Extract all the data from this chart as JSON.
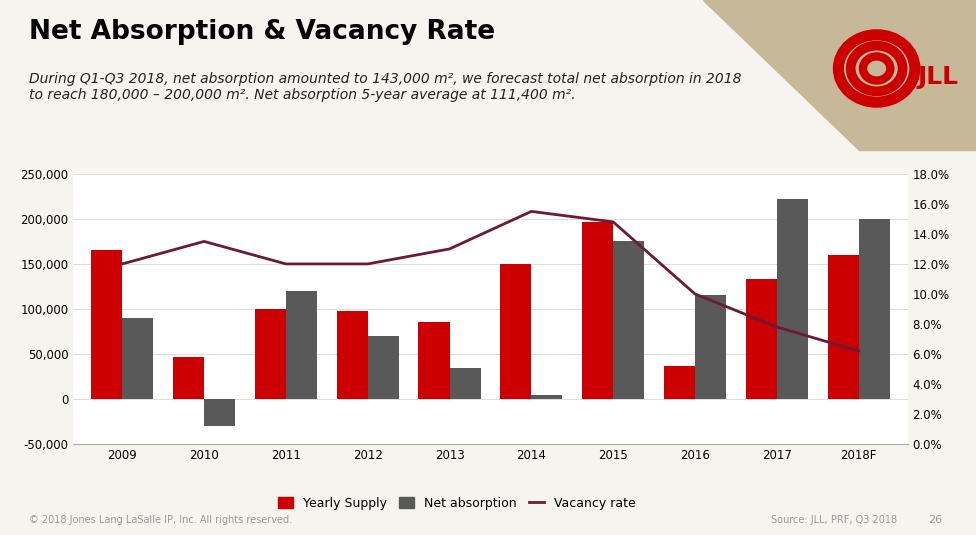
{
  "title": "Net Absorption & Vacancy Rate",
  "subtitle": "During Q1-Q3 2018, net absorption amounted to 143,000 m², we forecast total net absorption in 2018\nto reach 180,000 – 200,000 m². Net absorption 5-year average at 111,400 m².",
  "categories": [
    "2009",
    "2010",
    "2011",
    "2012",
    "2013",
    "2014",
    "2015",
    "2016",
    "2017",
    "2018F"
  ],
  "yearly_supply": [
    165000,
    47000,
    100000,
    98000,
    85000,
    150000,
    197000,
    37000,
    133000,
    160000
  ],
  "net_absorption": [
    90000,
    -30000,
    120000,
    70000,
    35000,
    5000,
    175000,
    115000,
    222000,
    200000
  ],
  "vacancy_rate": [
    0.12,
    0.135,
    0.12,
    0.12,
    0.13,
    0.155,
    0.148,
    0.1,
    0.078,
    0.062
  ],
  "bar_width": 0.38,
  "yearly_supply_color": "#cc0000",
  "net_absorption_color": "#595959",
  "vacancy_rate_color": "#6b1a3a",
  "slide_bg_color": "#f5f4ef",
  "header_bg_color": "#ffffff",
  "plot_bg_color": "#ffffff",
  "ylim_left": [
    -50000,
    250000
  ],
  "ylim_right": [
    0.0,
    0.18
  ],
  "yticks_left": [
    -50000,
    0,
    50000,
    100000,
    150000,
    200000,
    250000
  ],
  "yticks_right": [
    0.0,
    0.02,
    0.04,
    0.06,
    0.08,
    0.1,
    0.12,
    0.14,
    0.16,
    0.18
  ],
  "footer_left": "© 2018 Jones Lang LaSalle IP, Inc. All rights reserved.",
  "footer_right": "Source: JLL, PRF, Q3 2018",
  "page_number": "26",
  "title_fontsize": 19,
  "subtitle_fontsize": 10,
  "axis_fontsize": 8.5,
  "legend_fontsize": 9,
  "footer_fontsize": 7
}
